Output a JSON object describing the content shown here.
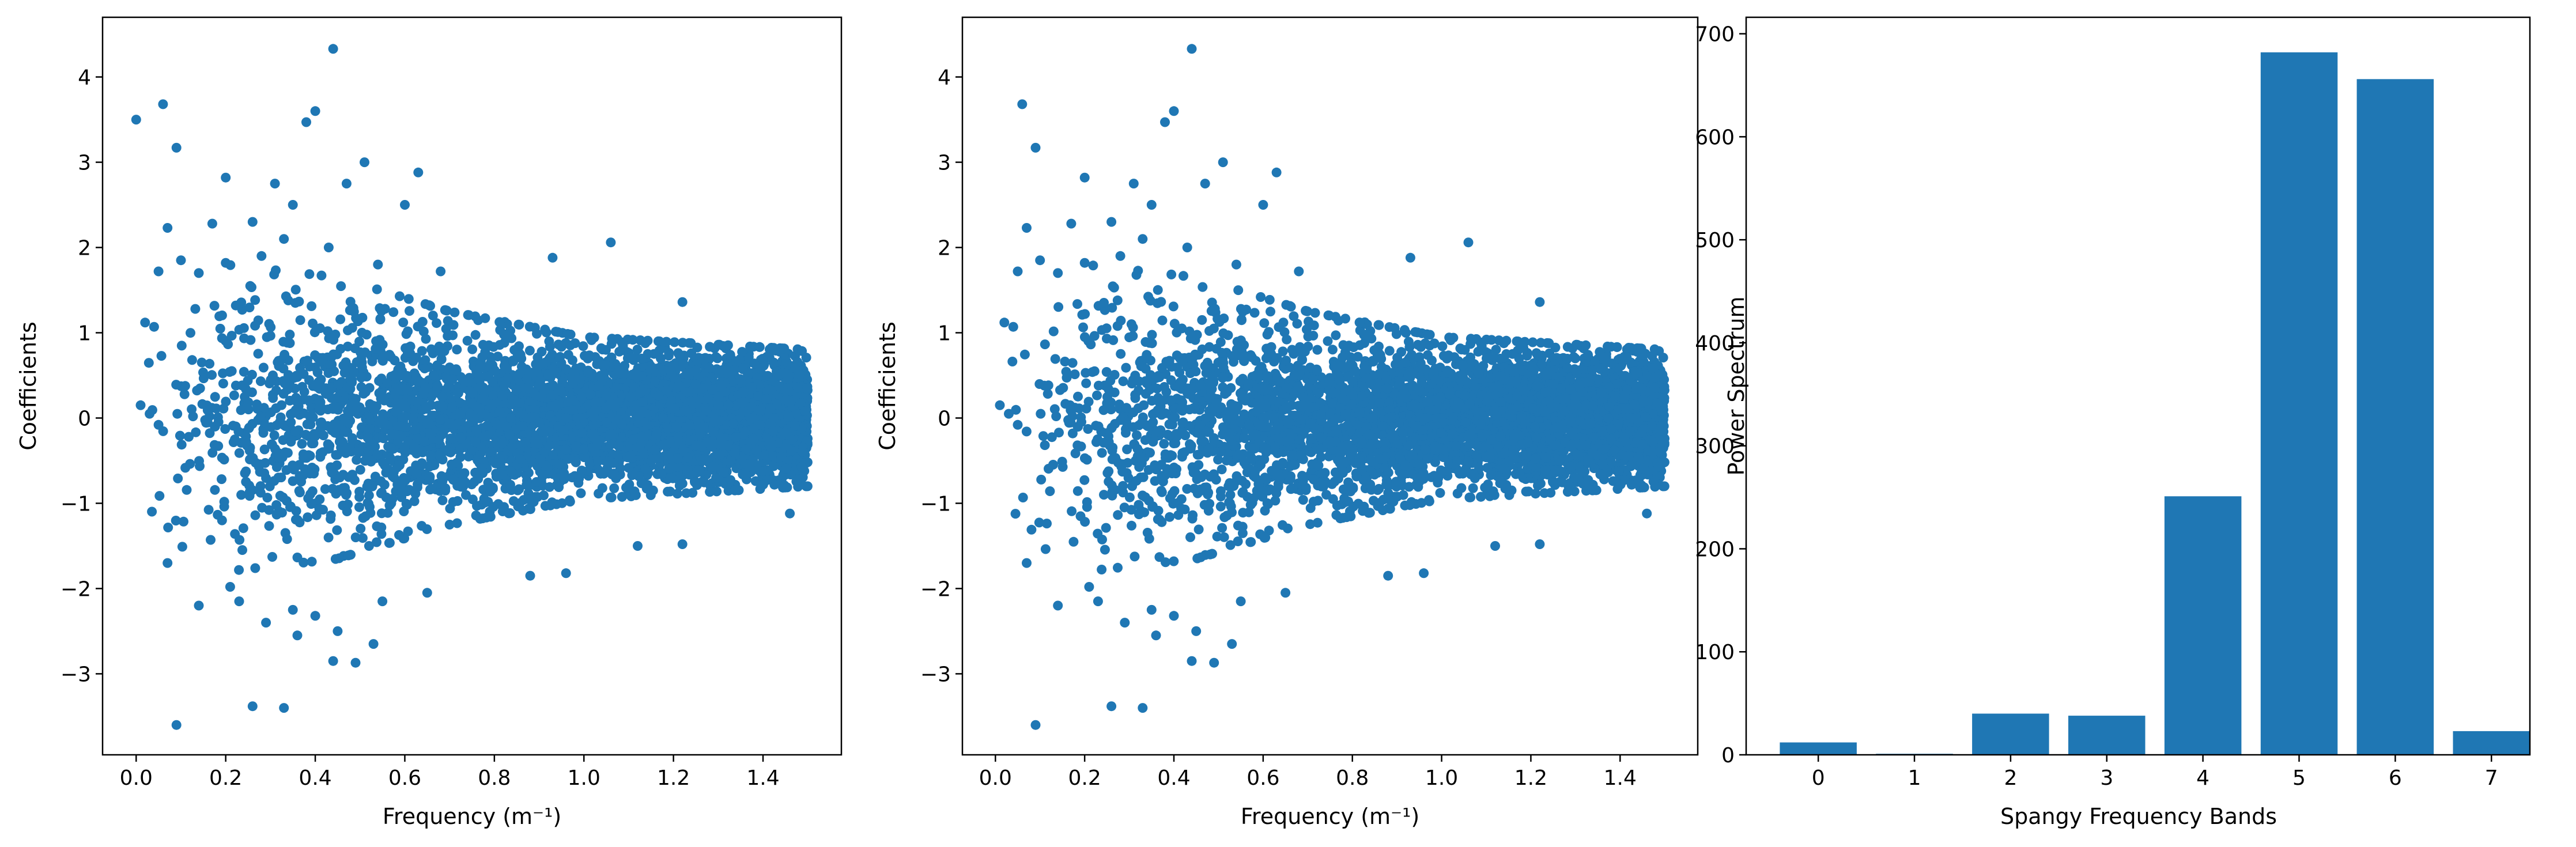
{
  "chart_data": [
    {
      "type": "scatter",
      "xlabel": "Frequency (m⁻¹)",
      "ylabel": "Coefficients",
      "xlim": [
        -0.075,
        1.575
      ],
      "ylim": [
        -3.95,
        4.7
      ],
      "xticks": [
        0.0,
        0.2,
        0.4,
        0.6,
        0.8,
        1.0,
        1.2,
        1.4
      ],
      "xtick_labels": [
        "0.0",
        "0.2",
        "0.4",
        "0.6",
        "0.8",
        "1.0",
        "1.2",
        "1.4"
      ],
      "yticks": [
        -3,
        -2,
        -1,
        0,
        1,
        2,
        3,
        4
      ],
      "ytick_labels": [
        "−3",
        "−2",
        "−1",
        "0",
        "1",
        "2",
        "3",
        "4"
      ],
      "color": "#1f77b4",
      "points": [
        [
          0.0,
          3.5
        ],
        [
          0.06,
          3.68
        ],
        [
          0.09,
          3.17
        ],
        [
          0.44,
          4.33
        ],
        [
          0.38,
          3.47
        ],
        [
          0.4,
          3.6
        ],
        [
          0.2,
          2.82
        ],
        [
          0.31,
          2.75
        ],
        [
          0.51,
          3.0
        ],
        [
          0.63,
          2.88
        ],
        [
          0.07,
          2.23
        ],
        [
          0.17,
          2.28
        ],
        [
          0.26,
          2.3
        ],
        [
          0.35,
          2.5
        ],
        [
          0.47,
          2.75
        ],
        [
          0.6,
          2.5
        ],
        [
          1.06,
          2.06
        ],
        [
          0.05,
          1.72
        ],
        [
          0.1,
          1.85
        ],
        [
          0.14,
          1.7
        ],
        [
          0.2,
          1.82
        ],
        [
          0.28,
          1.9
        ],
        [
          0.33,
          2.1
        ],
        [
          0.43,
          2.0
        ],
        [
          0.54,
          1.8
        ],
        [
          0.68,
          1.72
        ],
        [
          0.93,
          1.88
        ],
        [
          1.22,
          1.36
        ],
        [
          0.02,
          1.12
        ],
        [
          0.04,
          1.07
        ],
        [
          0.09,
          -3.6
        ],
        [
          0.26,
          -3.38
        ],
        [
          0.33,
          -3.4
        ],
        [
          0.44,
          -2.85
        ],
        [
          0.49,
          -2.87
        ],
        [
          0.45,
          -2.5
        ],
        [
          0.53,
          -2.65
        ],
        [
          0.36,
          -2.55
        ],
        [
          0.21,
          -1.98
        ],
        [
          0.29,
          -2.4
        ],
        [
          0.35,
          -2.25
        ],
        [
          0.4,
          -2.32
        ],
        [
          0.07,
          -1.7
        ],
        [
          0.14,
          -2.2
        ],
        [
          0.23,
          -2.15
        ],
        [
          0.55,
          -2.15
        ],
        [
          0.65,
          -2.05
        ],
        [
          0.88,
          -1.85
        ],
        [
          0.96,
          -1.82
        ],
        [
          1.12,
          -1.5
        ],
        [
          1.22,
          -1.48
        ],
        [
          1.46,
          -1.12
        ],
        [
          0.01,
          0.15
        ],
        [
          0.03,
          0.05
        ],
        [
          0.05,
          -0.08
        ]
      ],
      "dense_cloud": {
        "n_points": 4500,
        "x_range": [
          0.0,
          1.5
        ],
        "envelope": [
          [
            0.0,
            1.2
          ],
          [
            0.2,
            1.8
          ],
          [
            0.45,
            1.65
          ],
          [
            0.7,
            1.25
          ],
          [
            1.0,
            0.95
          ],
          [
            1.5,
            0.8
          ]
        ],
        "noise_scale": 0.45,
        "seed": 1337
      }
    },
    {
      "type": "scatter",
      "xlabel": "Frequency (m⁻¹)",
      "ylabel": "Coefficients",
      "xlim": [
        -0.074,
        1.574
      ],
      "ylim": [
        -3.95,
        4.7
      ],
      "xticks": [
        0.0,
        0.2,
        0.4,
        0.6,
        0.8,
        1.0,
        1.2,
        1.4
      ],
      "xtick_labels": [
        "0.0",
        "0.2",
        "0.4",
        "0.6",
        "0.8",
        "1.0",
        "1.2",
        "1.4"
      ],
      "yticks": [
        -3,
        -2,
        -1,
        0,
        1,
        2,
        3,
        4
      ],
      "ytick_labels": [
        "−3",
        "−2",
        "−1",
        "0",
        "1",
        "2",
        "3",
        "4"
      ],
      "color": "#1f77b4",
      "points": [
        [
          0.06,
          3.68
        ],
        [
          0.09,
          3.17
        ],
        [
          0.44,
          4.33
        ],
        [
          0.38,
          3.47
        ],
        [
          0.4,
          3.6
        ],
        [
          0.2,
          2.82
        ],
        [
          0.31,
          2.75
        ],
        [
          0.51,
          3.0
        ],
        [
          0.63,
          2.88
        ],
        [
          0.07,
          2.23
        ],
        [
          0.17,
          2.28
        ],
        [
          0.26,
          2.3
        ],
        [
          0.35,
          2.5
        ],
        [
          0.47,
          2.75
        ],
        [
          0.6,
          2.5
        ],
        [
          1.06,
          2.06
        ],
        [
          0.05,
          1.72
        ],
        [
          0.1,
          1.85
        ],
        [
          0.14,
          1.7
        ],
        [
          0.2,
          1.82
        ],
        [
          0.28,
          1.9
        ],
        [
          0.33,
          2.1
        ],
        [
          0.43,
          2.0
        ],
        [
          0.54,
          1.8
        ],
        [
          0.68,
          1.72
        ],
        [
          0.93,
          1.88
        ],
        [
          1.22,
          1.36
        ],
        [
          0.02,
          1.12
        ],
        [
          0.04,
          1.07
        ],
        [
          0.09,
          -3.6
        ],
        [
          0.26,
          -3.38
        ],
        [
          0.33,
          -3.4
        ],
        [
          0.44,
          -2.85
        ],
        [
          0.49,
          -2.87
        ],
        [
          0.45,
          -2.5
        ],
        [
          0.53,
          -2.65
        ],
        [
          0.36,
          -2.55
        ],
        [
          0.21,
          -1.98
        ],
        [
          0.29,
          -2.4
        ],
        [
          0.35,
          -2.25
        ],
        [
          0.4,
          -2.32
        ],
        [
          0.07,
          -1.7
        ],
        [
          0.14,
          -2.2
        ],
        [
          0.23,
          -2.15
        ],
        [
          0.55,
          -2.15
        ],
        [
          0.65,
          -2.05
        ],
        [
          0.88,
          -1.85
        ],
        [
          0.96,
          -1.82
        ],
        [
          1.12,
          -1.5
        ],
        [
          1.22,
          -1.48
        ],
        [
          1.46,
          -1.12
        ],
        [
          0.01,
          0.15
        ],
        [
          0.03,
          0.05
        ],
        [
          0.05,
          -0.08
        ]
      ],
      "dense_cloud": {
        "n_points": 4500,
        "x_range": [
          0.01,
          1.5
        ],
        "envelope": [
          [
            0.0,
            1.2
          ],
          [
            0.2,
            1.8
          ],
          [
            0.45,
            1.65
          ],
          [
            0.7,
            1.25
          ],
          [
            1.0,
            0.95
          ],
          [
            1.5,
            0.8
          ]
        ],
        "noise_scale": 0.45,
        "seed": 1337
      }
    },
    {
      "type": "bar",
      "xlabel": "Spangy Frequency Bands",
      "ylabel": "Power Spectrum",
      "categories": [
        "0",
        "1",
        "2",
        "3",
        "4",
        "5",
        "6",
        "7"
      ],
      "values": [
        12,
        1,
        40,
        38,
        251,
        682,
        656,
        23
      ],
      "xlim": [
        -0.75,
        7.4
      ],
      "ylim": [
        0,
        716
      ],
      "yticks": [
        0,
        100,
        200,
        300,
        400,
        500,
        600,
        700
      ],
      "ytick_labels": [
        "0",
        "100",
        "200",
        "300",
        "400",
        "500",
        "600",
        "700"
      ],
      "color": "#1f77b4"
    }
  ]
}
